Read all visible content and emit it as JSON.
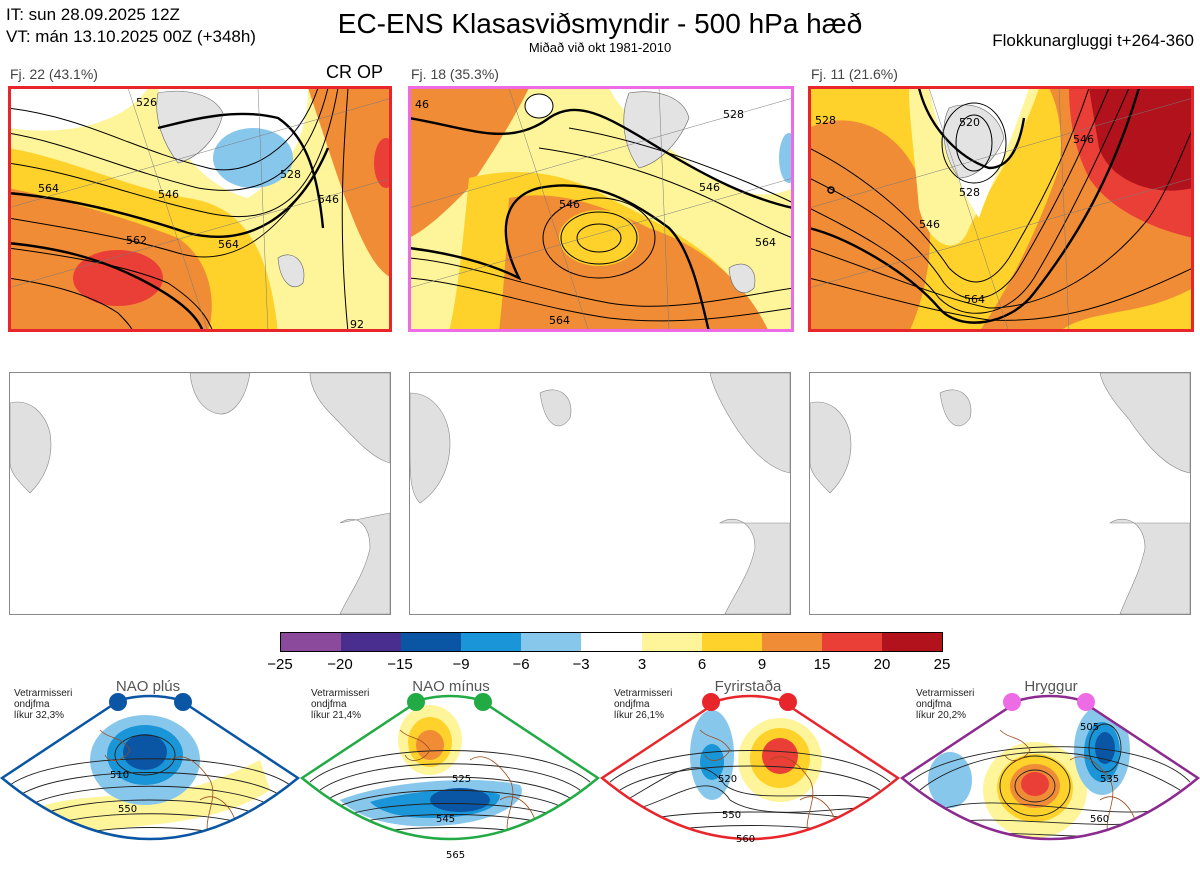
{
  "header": {
    "init_time": "IT: sun 28.09.2025 12Z",
    "valid_time": "VT: mán 13.10.2025 00Z  (+348h)",
    "title": "EC-ENS Klasasviðsmyndir - 500 hPa hæð",
    "subtitle": "Miðað við okt 1981-2010",
    "window": "Flokkunargluggi t+264-360"
  },
  "clusters": [
    {
      "label": "Fj. 22 (43.1%)",
      "badge": "CR OP",
      "border_color": "#e8252a",
      "contours": [
        "526",
        "546",
        "564",
        "562",
        "546",
        "564",
        "528",
        "92"
      ]
    },
    {
      "label": "Fj. 18 (35.3%)",
      "border_color": "#ee6be6",
      "contours": [
        "46",
        "528",
        "546",
        "546",
        "564",
        "564"
      ]
    },
    {
      "label": "Fj. 11 (21.6%)",
      "border_color": "#e8252a",
      "contours": [
        "528",
        "520",
        "528",
        "546",
        "546",
        "564"
      ]
    }
  ],
  "colorbar": {
    "ticks": [
      "−25",
      "−20",
      "−15",
      "−9",
      "−6",
      "−3",
      "3",
      "6",
      "9",
      "15",
      "20",
      "25"
    ],
    "colors": [
      "#8b4a9c",
      "#4a2e8f",
      "#0a56a4",
      "#1a95d8",
      "#88c7ec",
      "#ffffff",
      "#fef59a",
      "#fed22a",
      "#f08c36",
      "#ea3f36",
      "#b1121c"
    ]
  },
  "regimes": [
    {
      "name": "NAO plús",
      "stat_line1": "Vetrarmisseri",
      "stat_line2": "ondjfma",
      "stat_line3": "líkur 32,3%",
      "color": "#0a56a4",
      "contours": [
        "510",
        "550"
      ]
    },
    {
      "name": "NAO mínus",
      "stat_line1": "Vetrarmisseri",
      "stat_line2": "ondjfma",
      "stat_line3": "líkur 21,4%",
      "color": "#22aa44",
      "contours": [
        "525",
        "545",
        "565"
      ]
    },
    {
      "name": "Fyrirstaða",
      "stat_line1": "Vetrarmisseri",
      "stat_line2": "ondjfma",
      "stat_line3": "líkur 26,1%",
      "color": "#e8252a",
      "contours": [
        "520",
        "550",
        "560"
      ]
    },
    {
      "name": "Hryggur",
      "stat_line1": "Vetrarmisseri",
      "stat_line2": "ondjfma",
      "stat_line3": "líkur 20,2%",
      "color": "#8b2a8f",
      "contours": [
        "505",
        "535",
        "560"
      ]
    }
  ]
}
